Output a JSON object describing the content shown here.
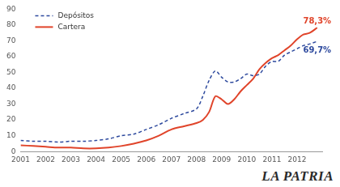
{
  "chart_data": {
    "type": "line",
    "x": [
      2001,
      2001.5,
      2002,
      2002.5,
      2003,
      2003.5,
      2004,
      2004.5,
      2005,
      2005.5,
      2006,
      2006.5,
      2007,
      2007.5,
      2008,
      2008.25,
      2008.5,
      2008.75,
      2009,
      2009.25,
      2009.5,
      2009.75,
      2010,
      2010.25,
      2010.5,
      2010.75,
      2011,
      2011.25,
      2011.5,
      2011.75,
      2012,
      2012.25,
      2012.5,
      2012.8
    ],
    "series": [
      {
        "name": "Depósitos",
        "color": "#2e4a9e",
        "line_style": "dashed",
        "values": [
          7,
          6.5,
          6.5,
          6,
          6.5,
          6.5,
          7,
          8,
          10,
          11,
          14,
          17,
          21,
          24,
          27,
          35,
          45,
          51,
          47,
          44,
          44,
          46,
          49,
          48,
          49,
          54,
          57,
          57,
          61,
          63,
          65,
          67,
          68,
          69.7
        ],
        "value_labels": [
          null,
          null,
          null,
          null,
          null,
          null,
          null,
          null,
          null,
          null,
          null,
          null,
          null,
          null,
          null,
          null,
          null,
          null,
          null,
          null,
          null,
          null,
          null,
          null,
          null,
          null,
          null,
          null,
          null,
          null,
          null,
          null,
          null,
          "69,7%"
        ]
      },
      {
        "name": "Cartera",
        "color": "#e0442a",
        "line_style": "solid",
        "values": [
          4,
          3.5,
          3,
          2.5,
          2.5,
          2,
          2,
          2.5,
          3.5,
          5,
          7,
          10,
          14,
          16,
          18,
          20,
          25,
          35,
          33,
          30,
          33,
          38,
          42,
          46,
          52,
          56,
          59,
          61,
          64,
          67,
          71,
          74,
          75,
          78.3
        ],
        "value_labels": [
          null,
          null,
          null,
          null,
          null,
          null,
          null,
          null,
          null,
          null,
          null,
          null,
          null,
          null,
          null,
          null,
          null,
          null,
          null,
          null,
          null,
          null,
          null,
          null,
          null,
          null,
          null,
          null,
          null,
          null,
          null,
          null,
          null,
          "78,3%"
        ]
      }
    ],
    "xlim": [
      2001,
      2013
    ],
    "xticks": [
      2001,
      2002,
      2003,
      2004,
      2005,
      2006,
      2007,
      2008,
      2009,
      2010,
      2011,
      2012
    ],
    "ylim": [
      0,
      90
    ],
    "yticks": [
      0,
      10,
      20,
      30,
      40,
      50,
      60,
      70,
      80,
      90
    ],
    "grid": false,
    "legend": "upper left",
    "source": "LA PATRIA"
  }
}
